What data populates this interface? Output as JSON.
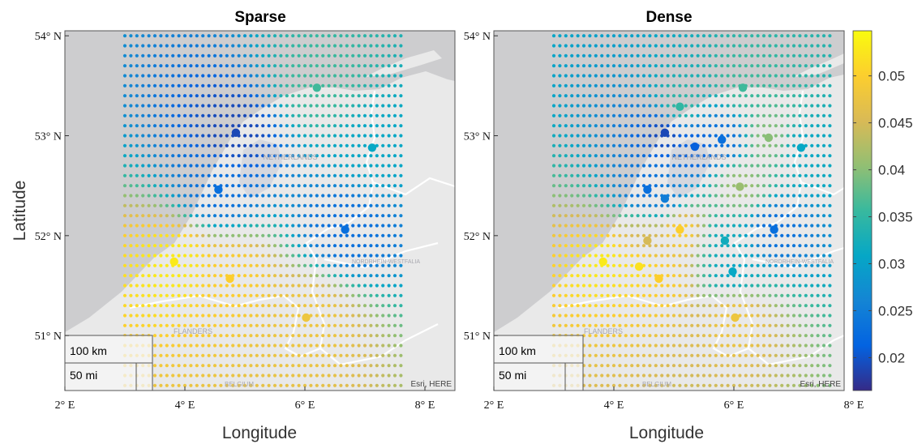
{
  "panels": [
    {
      "title": "Sparse"
    },
    {
      "title": "Dense"
    }
  ],
  "y_axis": {
    "label": "Latitude",
    "ticks": [
      "54° N",
      "53° N",
      "52° N",
      "51° N"
    ],
    "values": [
      54,
      53,
      52,
      51
    ]
  },
  "x_axis": {
    "label": "Longitude",
    "ticks": [
      "2° E",
      "4° E",
      "6° E",
      "8° E"
    ],
    "values": [
      2,
      4,
      6,
      8
    ]
  },
  "map_labels": {
    "country_nl": "NETHERLANDS",
    "country_be": "BELGIUM",
    "region_vl": "FLANDERS",
    "region_nrw": "NORDRHEIN-WESTFALIA",
    "attribution": "Esri, HERE"
  },
  "scale_bar": {
    "km": "100 km",
    "mi": "50 mi"
  },
  "colorbar": {
    "min": 0.0165,
    "max": 0.0548,
    "ticks": [
      "0.05",
      "0.045",
      "0.04",
      "0.035",
      "0.03",
      "0.025",
      "0.02"
    ],
    "tick_values": [
      0.05,
      0.045,
      0.04,
      0.035,
      0.03,
      0.025,
      0.02
    ],
    "colormap": "parula"
  },
  "colors": {
    "sea": "#cdcdcf",
    "land": "#e9e9e9",
    "border": "#ffffff"
  },
  "chart_data": [
    {
      "type": "scatter",
      "title": "Sparse",
      "xlabel": "Longitude",
      "ylabel": "Latitude",
      "xlim": [
        2,
        8.5
      ],
      "ylim": [
        50.45,
        54.05
      ],
      "grid": {
        "lon_min": 3.0,
        "lon_max": 7.6,
        "lon_step": 0.1,
        "lat_min": 50.5,
        "lat_max": 54.0,
        "lat_step": 0.1
      },
      "stations": [
        {
          "lon": 6.2,
          "lat": 53.48,
          "value": 0.036
        },
        {
          "lon": 4.85,
          "lat": 53.03,
          "value": 0.019
        },
        {
          "lon": 7.12,
          "lat": 52.88,
          "value": 0.031
        },
        {
          "lon": 4.56,
          "lat": 52.46,
          "value": 0.023
        },
        {
          "lon": 6.67,
          "lat": 52.06,
          "value": 0.023
        },
        {
          "lon": 3.82,
          "lat": 51.74,
          "value": 0.053
        },
        {
          "lon": 4.75,
          "lat": 51.57,
          "value": 0.05
        },
        {
          "lon": 6.02,
          "lat": 51.18,
          "value": 0.048
        }
      ]
    },
    {
      "type": "scatter",
      "title": "Dense",
      "xlabel": "Longitude",
      "ylabel": "Latitude",
      "xlim": [
        2,
        8.5
      ],
      "ylim": [
        50.45,
        54.05
      ],
      "grid": {
        "lon_min": 3.0,
        "lon_max": 7.6,
        "lon_step": 0.1,
        "lat_min": 50.5,
        "lat_max": 54.0,
        "lat_step": 0.1
      },
      "stations": [
        {
          "lon": 6.15,
          "lat": 53.48,
          "value": 0.036
        },
        {
          "lon": 5.1,
          "lat": 53.29,
          "value": 0.035
        },
        {
          "lon": 4.85,
          "lat": 53.03,
          "value": 0.019
        },
        {
          "lon": 5.35,
          "lat": 52.89,
          "value": 0.021
        },
        {
          "lon": 5.8,
          "lat": 52.96,
          "value": 0.023
        },
        {
          "lon": 6.58,
          "lat": 52.98,
          "value": 0.04
        },
        {
          "lon": 7.12,
          "lat": 52.88,
          "value": 0.031
        },
        {
          "lon": 6.1,
          "lat": 52.49,
          "value": 0.041
        },
        {
          "lon": 4.56,
          "lat": 52.46,
          "value": 0.023
        },
        {
          "lon": 4.85,
          "lat": 52.37,
          "value": 0.025
        },
        {
          "lon": 5.1,
          "lat": 52.06,
          "value": 0.05
        },
        {
          "lon": 6.67,
          "lat": 52.06,
          "value": 0.023
        },
        {
          "lon": 4.56,
          "lat": 51.95,
          "value": 0.045
        },
        {
          "lon": 5.85,
          "lat": 51.95,
          "value": 0.032
        },
        {
          "lon": 3.82,
          "lat": 51.74,
          "value": 0.053
        },
        {
          "lon": 4.42,
          "lat": 51.69,
          "value": 0.052
        },
        {
          "lon": 5.98,
          "lat": 51.64,
          "value": 0.031
        },
        {
          "lon": 4.75,
          "lat": 51.57,
          "value": 0.05
        },
        {
          "lon": 6.02,
          "lat": 51.18,
          "value": 0.048
        }
      ]
    }
  ]
}
